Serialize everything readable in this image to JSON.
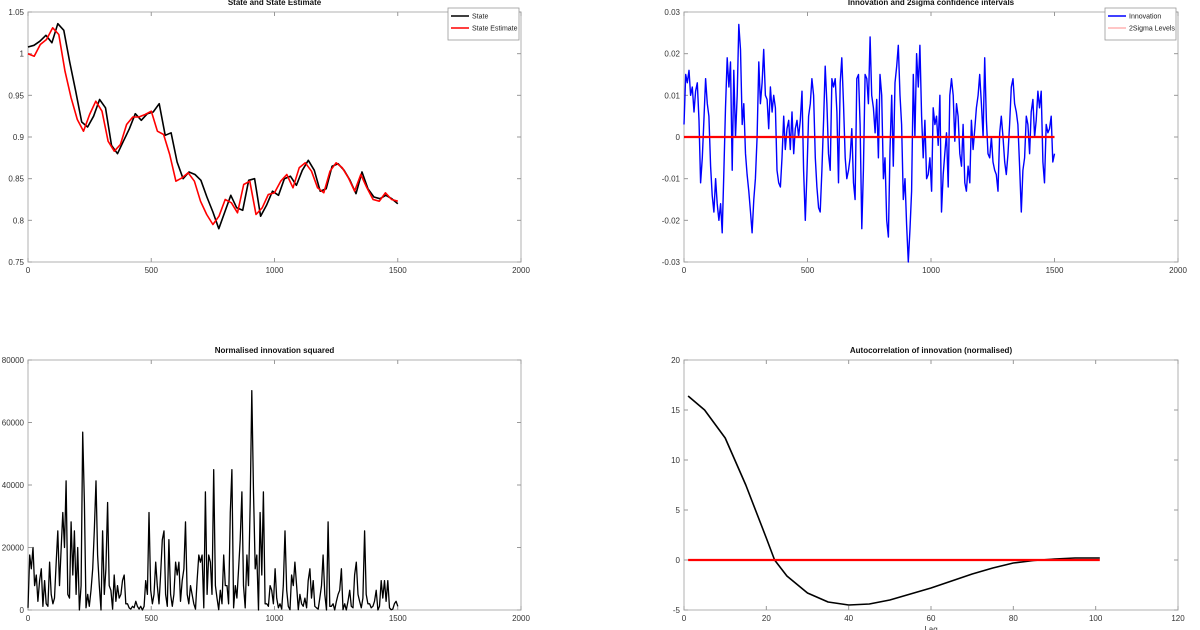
{
  "chart_data": [
    {
      "type": "line",
      "title": "State and State Estimate",
      "xlim": [
        0,
        2000
      ],
      "ylim": [
        0.75,
        1.05
      ],
      "xticks": [
        "0",
        "500",
        "1000",
        "1500",
        "2000"
      ],
      "yticks": [
        "0.75",
        "0.8",
        "0.85",
        "0.9",
        "0.95",
        "1",
        "1.05"
      ],
      "legend": "top-right",
      "x_range": [
        0,
        1500
      ],
      "series": [
        {
          "name": "State",
          "color": "#000000",
          "values": [
            1.008,
            1.01,
            1.015,
            1.022,
            1.013,
            1.036,
            1.028,
            0.99,
            0.955,
            0.918,
            0.912,
            0.925,
            0.945,
            0.935,
            0.89,
            0.88,
            0.895,
            0.91,
            0.928,
            0.92,
            0.928,
            0.93,
            0.94,
            0.902,
            0.905,
            0.87,
            0.85,
            0.858,
            0.855,
            0.848,
            0.828,
            0.81,
            0.79,
            0.81,
            0.83,
            0.815,
            0.812,
            0.848,
            0.85,
            0.805,
            0.818,
            0.835,
            0.83,
            0.85,
            0.853,
            0.842,
            0.86,
            0.872,
            0.86,
            0.835,
            0.838,
            0.865,
            0.868,
            0.86,
            0.848,
            0.832,
            0.858,
            0.838,
            0.828,
            0.826,
            0.83,
            0.826,
            0.82
          ]
        },
        {
          "name": "State Estimate",
          "color": "#ff0000",
          "values": [
            1.0,
            0.997,
            1.011,
            1.017,
            1.031,
            1.023,
            0.979,
            0.947,
            0.921,
            0.907,
            0.927,
            0.943,
            0.931,
            0.895,
            0.883,
            0.891,
            0.915,
            0.924,
            0.924,
            0.927,
            0.931,
            0.907,
            0.903,
            0.879,
            0.847,
            0.851,
            0.857,
            0.847,
            0.823,
            0.807,
            0.795,
            0.805,
            0.825,
            0.821,
            0.809,
            0.843,
            0.847,
            0.807,
            0.815,
            0.831,
            0.833,
            0.847,
            0.855,
            0.839,
            0.863,
            0.869,
            0.859,
            0.839,
            0.833,
            0.859,
            0.869,
            0.863,
            0.851,
            0.835,
            0.855,
            0.839,
            0.825,
            0.823,
            0.833,
            0.825,
            0.823
          ]
        }
      ]
    },
    {
      "type": "line",
      "title": "Innovation and 2sigma confidence intervals",
      "xlim": [
        0,
        2000
      ],
      "ylim": [
        -0.03,
        0.03
      ],
      "xticks": [
        "0",
        "500",
        "1000",
        "1500",
        "2000"
      ],
      "yticks": [
        "-0.03",
        "-0.02",
        "-0.01",
        "0",
        "0.01",
        "0.02",
        "0.03"
      ],
      "legend": "top-right",
      "x_range": [
        0,
        1500
      ],
      "series": [
        {
          "name": "Innovation",
          "color": "#0000ff",
          "values": [
            0.003,
            0.015,
            0.013,
            0.016,
            0.01,
            0.012,
            0.006,
            0.011,
            0.013,
            0.004,
            -0.011,
            -0.005,
            0.004,
            0.014,
            0.008,
            0.005,
            -0.007,
            -0.014,
            -0.018,
            -0.01,
            -0.016,
            -0.02,
            -0.016,
            -0.023,
            -0.008,
            0.007,
            0.019,
            0.012,
            0.018,
            -0.008,
            0.016,
            0.0,
            0.01,
            0.027,
            0.021,
            0.003,
            0.008,
            -0.004,
            -0.009,
            -0.013,
            -0.018,
            -0.023,
            -0.015,
            -0.01,
            0.0,
            0.018,
            0.008,
            0.013,
            0.021,
            0.01,
            0.009,
            0.002,
            0.012,
            0.006,
            0.01,
            0.007,
            -0.008,
            -0.011,
            -0.012,
            -0.005,
            0.005,
            -0.003,
            0.002,
            0.004,
            -0.003,
            0.006,
            -0.004,
            0.002,
            0.004,
            0.0,
            0.004,
            0.011,
            -0.008,
            -0.02,
            -0.009,
            0.005,
            0.008,
            0.014,
            0.01,
            -0.005,
            -0.012,
            -0.017,
            -0.018,
            -0.008,
            0.004,
            0.017,
            0.008,
            -0.004,
            -0.008,
            0.014,
            0.012,
            0.014,
            0.006,
            -0.011,
            0.013,
            0.019,
            0.008,
            -0.005,
            -0.01,
            -0.008,
            -0.005,
            0.002,
            -0.011,
            -0.015,
            0.014,
            0.015,
            0.003,
            -0.022,
            -0.008,
            0.015,
            0.014,
            0.008,
            0.024,
            0.01,
            0.007,
            0.001,
            0.009,
            -0.005,
            0.015,
            0.01,
            -0.01,
            -0.005,
            -0.02,
            -0.024,
            -0.003,
            0.01,
            -0.007,
            0.013,
            0.017,
            0.022,
            0.01,
            0.003,
            -0.015,
            -0.01,
            -0.021,
            -0.03,
            -0.022,
            -0.013,
            0.015,
            0.0,
            0.02,
            0.012,
            0.022,
            0.005,
            -0.005,
            0.004,
            -0.01,
            -0.009,
            -0.005,
            -0.013,
            0.007,
            0.003,
            0.005,
            -0.002,
            0.01,
            -0.018,
            -0.009,
            -0.004,
            0.001,
            -0.012,
            0.01,
            0.014,
            0.01,
            -0.001,
            0.008,
            0.005,
            -0.004,
            -0.007,
            0.003,
            -0.011,
            -0.013,
            -0.007,
            -0.011,
            0.004,
            -0.003,
            0.002,
            0.007,
            0.01,
            0.015,
            0.008,
            0.0,
            0.019,
            0.004,
            -0.004,
            -0.005,
            0.0,
            -0.006,
            -0.008,
            -0.009,
            -0.013,
            0.001,
            0.005,
            0.0,
            -0.006,
            -0.009,
            -0.004,
            0.003,
            0.012,
            0.014,
            0.008,
            0.006,
            0.003,
            -0.007,
            -0.018,
            -0.008,
            -0.005,
            0.005,
            0.003,
            -0.004,
            0.006,
            0.009,
            0.0,
            0.004,
            0.011,
            0.007,
            0.011,
            -0.006,
            -0.011,
            0.003,
            0.001,
            0.002,
            0.005,
            -0.006,
            -0.004
          ]
        },
        {
          "name": "2Sigma Levels",
          "color": "#ff0000",
          "values": [
            0,
            0
          ]
        }
      ]
    },
    {
      "type": "line",
      "title": "Normalised innovation squared",
      "xlim": [
        0,
        2000
      ],
      "ylim": [
        0,
        80000
      ],
      "xticks": [
        "0",
        "500",
        "1000",
        "1500",
        "2000"
      ],
      "yticks": [
        "0",
        "20000",
        "40000",
        "60000",
        "80000"
      ],
      "x_range": [
        0,
        1500
      ],
      "series": [
        {
          "color": "#000000",
          "values": [
            700,
            17600,
            13200,
            20000,
            7800,
            11200,
            2800,
            9400,
            13200,
            1200,
            9400,
            2000,
            1200,
            15300,
            5000,
            2000,
            3800,
            15300,
            25300,
            7800,
            20000,
            31200,
            20000,
            41300,
            5000,
            3800,
            28200,
            11200,
            25300,
            5000,
            20000,
            0,
            7800,
            56900,
            34400,
            700,
            5000,
            1200,
            6300,
            13200,
            25300,
            41300,
            17600,
            7800,
            0,
            25300,
            5000,
            13200,
            34400,
            7800,
            6300,
            300,
            11200,
            2800,
            7800,
            3800,
            5000,
            9400,
            11200,
            2000,
            2000,
            700,
            300,
            1200,
            700,
            2800,
            1200,
            300,
            1200,
            0,
            1200,
            9400,
            5000,
            31200,
            6300,
            2000,
            5000,
            15300,
            7800,
            2000,
            11200,
            22500,
            25300,
            5000,
            1200,
            22500,
            5000,
            1200,
            5000,
            15300,
            11200,
            15300,
            2800,
            9400,
            13200,
            28200,
            5000,
            2000,
            7800,
            5000,
            2000,
            300,
            9400,
            17600,
            15300,
            17600,
            700,
            37800,
            5000,
            17600,
            15300,
            5000,
            44900,
            7800,
            3800,
            100,
            6300,
            2000,
            17600,
            7800,
            7800,
            2000,
            31200,
            44900,
            700,
            7800,
            3800,
            13200,
            22500,
            37800,
            7800,
            700,
            17600,
            7800,
            34400,
            70200,
            37800,
            13200,
            17600,
            0,
            31200,
            11200,
            37800,
            2000,
            2000,
            1200,
            7800,
            6300,
            2000,
            13200,
            3800,
            700,
            2000,
            300,
            7800,
            25300,
            6300,
            1200,
            100,
            11200,
            7800,
            15300,
            7800,
            100,
            5000,
            2000,
            1200,
            3800,
            700,
            9400,
            13200,
            3800,
            9400,
            1200,
            700,
            300,
            3800,
            7800,
            17600,
            5000,
            0,
            28200,
            1200,
            1200,
            2000,
            0,
            2800,
            5000,
            6300,
            13200,
            100,
            2000,
            0,
            2800,
            6300,
            1200,
            700,
            11200,
            15300,
            5000,
            2800,
            700,
            3800,
            25300,
            5000,
            2000,
            2000,
            700,
            1200,
            2800,
            6300,
            0,
            1200,
            9400,
            3800,
            9400,
            2800,
            9400,
            700,
            100,
            300,
            2000,
            2800,
            1200
          ]
        }
      ]
    },
    {
      "type": "line",
      "title": "Autocorrelation of innovation (normalised)",
      "xlabel": "Lag",
      "xlim": [
        0,
        120
      ],
      "ylim": [
        -5,
        20
      ],
      "xticks": [
        "0",
        "20",
        "40",
        "60",
        "80",
        "100",
        "120"
      ],
      "yticks": [
        "-5",
        "0",
        "5",
        "10",
        "15",
        "20"
      ],
      "series": [
        {
          "color": "#000000",
          "x": [
            1,
            5,
            10,
            15,
            20,
            22,
            25,
            30,
            35,
            40,
            45,
            50,
            55,
            60,
            65,
            70,
            75,
            80,
            85,
            90,
            95,
            100,
            101
          ],
          "values": [
            16.4,
            15.0,
            12.2,
            7.5,
            2.2,
            0.0,
            -1.6,
            -3.3,
            -4.2,
            -4.5,
            -4.4,
            -4.0,
            -3.4,
            -2.8,
            -2.1,
            -1.4,
            -0.8,
            -0.3,
            -0.05,
            0.1,
            0.2,
            0.2,
            0.2
          ]
        },
        {
          "color": "#ff0000",
          "x": [
            1,
            101
          ],
          "values": [
            0,
            0
          ]
        }
      ]
    }
  ]
}
